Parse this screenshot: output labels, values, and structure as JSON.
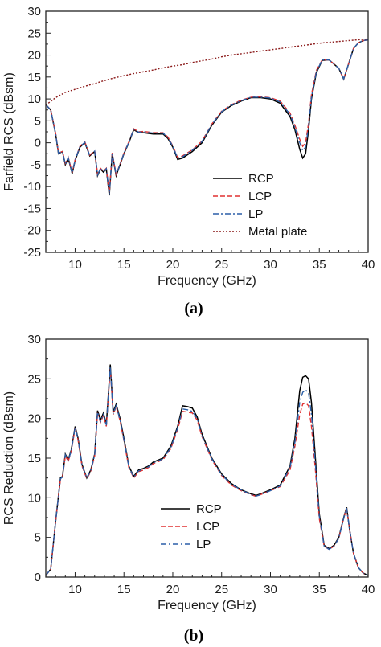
{
  "chart_data": [
    {
      "type": "line",
      "panel_label": "(a)",
      "xlabel": "Frequency (GHz)",
      "ylabel": "Farfield RCS (dBsm)",
      "xlim": [
        7,
        40
      ],
      "ylim": [
        -25,
        30
      ],
      "xticks": [
        10,
        15,
        20,
        25,
        30,
        35,
        40
      ],
      "yticks": [
        -25,
        -20,
        -15,
        -10,
        -5,
        0,
        5,
        10,
        15,
        20,
        25,
        30
      ],
      "legend_position": "lower-right",
      "grid": false,
      "series": [
        {
          "name": "RCP",
          "color": "#000000",
          "style": "solid",
          "x": [
            7,
            7.5,
            8,
            8.3,
            8.7,
            9,
            9.3,
            9.7,
            10,
            10.5,
            11,
            11.5,
            12,
            12.3,
            12.6,
            12.9,
            13.2,
            13.5,
            13.8,
            14.2,
            14.6,
            15,
            15.5,
            16,
            16.5,
            17,
            18,
            19,
            19.5,
            20,
            20.5,
            21,
            22,
            23,
            24,
            25,
            26,
            27,
            28,
            29,
            30,
            31,
            32,
            32.5,
            33,
            33.3,
            33.6,
            33.9,
            34.2,
            34.7,
            35.3,
            36,
            37,
            37.5,
            38,
            38.5,
            39,
            39.5,
            40
          ],
          "y": [
            8.7,
            7.5,
            2,
            -2.5,
            -2,
            -5,
            -3.5,
            -7,
            -4,
            -1,
            0,
            -3,
            -2,
            -7.5,
            -6,
            -6.7,
            -6,
            -12,
            -2.5,
            -7.5,
            -5,
            -2.5,
            0,
            3,
            2.3,
            2.3,
            2,
            2,
            1,
            -1,
            -3.8,
            -3.5,
            -2,
            0,
            4,
            7,
            8.5,
            9.5,
            10.3,
            10.3,
            10,
            9,
            6,
            3,
            -1.5,
            -3.5,
            -2.5,
            3,
            10,
            16,
            18.8,
            18.9,
            17,
            14.5,
            18,
            21.5,
            22.8,
            23.3,
            23.5
          ]
        },
        {
          "name": "LCP",
          "color": "#e03030",
          "style": "dashed",
          "x": [
            7,
            7.5,
            8,
            8.3,
            8.7,
            9,
            9.3,
            9.7,
            10,
            10.5,
            11,
            11.5,
            12,
            12.3,
            12.6,
            12.9,
            13.2,
            13.5,
            13.8,
            14.2,
            14.6,
            15,
            15.5,
            16,
            16.5,
            17,
            18,
            19,
            19.5,
            20,
            20.5,
            21,
            22,
            23,
            24,
            25,
            26,
            27,
            28,
            29,
            30,
            31,
            32,
            32.5,
            33,
            33.3,
            33.6,
            33.9,
            34.2,
            34.7,
            35.3,
            36,
            37,
            37.5,
            38,
            38.5,
            39,
            39.5,
            40
          ],
          "y": [
            8.7,
            7.5,
            2.2,
            -2.3,
            -2,
            -4.7,
            -3.3,
            -6.8,
            -3.8,
            -0.8,
            0.2,
            -2.8,
            -1.8,
            -7.2,
            -5.8,
            -6.5,
            -5.8,
            -11.5,
            -2.3,
            -7.2,
            -4.8,
            -2.3,
            0.2,
            3.2,
            2.5,
            2.6,
            2.3,
            2.3,
            1.3,
            -0.7,
            -3.4,
            -3,
            -1.6,
            0.4,
            4.3,
            7.2,
            8.7,
            9.7,
            10.4,
            10.5,
            10.3,
            9.5,
            6.8,
            4,
            0.8,
            -0.8,
            0,
            4.5,
            11,
            16.5,
            18.9,
            18.9,
            17,
            14.6,
            18,
            21.5,
            22.8,
            23.3,
            23.5
          ]
        },
        {
          "name": "LP",
          "color": "#2b5fa8",
          "style": "dashdot",
          "x": [
            7,
            7.5,
            8,
            8.3,
            8.7,
            9,
            9.3,
            9.7,
            10,
            10.5,
            11,
            11.5,
            12,
            12.3,
            12.6,
            12.9,
            13.2,
            13.5,
            13.8,
            14.2,
            14.6,
            15,
            15.5,
            16,
            16.5,
            17,
            18,
            19,
            19.5,
            20,
            20.5,
            21,
            22,
            23,
            24,
            25,
            26,
            27,
            28,
            29,
            30,
            31,
            32,
            32.5,
            33,
            33.3,
            33.6,
            33.9,
            34.2,
            34.7,
            35.3,
            36,
            37,
            37.5,
            38,
            38.5,
            39,
            39.5,
            40
          ],
          "y": [
            8.7,
            7.5,
            2.1,
            -2.4,
            -2,
            -4.8,
            -3.4,
            -6.9,
            -3.9,
            -0.9,
            0.1,
            -2.9,
            -1.9,
            -7.3,
            -5.9,
            -6.6,
            -5.9,
            -11.7,
            -2.4,
            -7.3,
            -4.9,
            -2.4,
            0.1,
            3.1,
            2.4,
            2.5,
            2.2,
            2.2,
            1.2,
            -0.8,
            -3.5,
            -3.2,
            -1.7,
            0.3,
            4.2,
            7.1,
            8.6,
            9.6,
            10.4,
            10.4,
            10.2,
            9.3,
            6.5,
            3.5,
            0,
            -1.8,
            -1,
            3.8,
            10.5,
            16.2,
            18.9,
            18.9,
            17,
            14.6,
            18,
            21.5,
            22.8,
            23.3,
            23.5
          ]
        },
        {
          "name": "Metal plate",
          "color": "#8b1a1a",
          "style": "dotted",
          "x": [
            7,
            8,
            9,
            10,
            11,
            12,
            13,
            14,
            15,
            16,
            17,
            18,
            19,
            20,
            21,
            22,
            23,
            24,
            25,
            26,
            27,
            28,
            29,
            30,
            31,
            32,
            33,
            34,
            35,
            36,
            37,
            38,
            39,
            40
          ],
          "y": [
            8.6,
            10.3,
            11.5,
            12.2,
            12.9,
            13.5,
            14.2,
            14.8,
            15.3,
            15.8,
            16.2,
            16.6,
            17.1,
            17.5,
            17.8,
            18.3,
            18.7,
            19.1,
            19.6,
            20,
            20.3,
            20.6,
            20.9,
            21.2,
            21.5,
            21.8,
            22.1,
            22.4,
            22.7,
            22.9,
            23.1,
            23.3,
            23.5,
            23.7
          ]
        }
      ]
    },
    {
      "type": "line",
      "panel_label": "(b)",
      "xlabel": "Frequency (GHz)",
      "ylabel": "RCS Reduction (dBsm)",
      "xlim": [
        7,
        40
      ],
      "ylim": [
        0,
        30
      ],
      "xticks": [
        10,
        15,
        20,
        25,
        30,
        35,
        40
      ],
      "yticks": [
        0,
        5,
        10,
        15,
        20,
        25,
        30
      ],
      "legend_position": "lower-center",
      "grid": false,
      "series": [
        {
          "name": "RCP",
          "color": "#000000",
          "style": "solid",
          "x": [
            7,
            7.5,
            8,
            8.5,
            8.7,
            9,
            9.3,
            9.6,
            10,
            10.3,
            10.7,
            11.2,
            11.6,
            12,
            12.3,
            12.6,
            12.9,
            13.2,
            13.4,
            13.6,
            13.9,
            14.2,
            14.6,
            15,
            15.5,
            16,
            16.5,
            17,
            17.5,
            18,
            19,
            19.8,
            20.5,
            21,
            21.5,
            22,
            22.5,
            23,
            24,
            25,
            26,
            27,
            28,
            28.5,
            29,
            30,
            31,
            32,
            32.5,
            33,
            33.3,
            33.6,
            33.9,
            34.2,
            34.6,
            35,
            35.5,
            36,
            36.5,
            37,
            37.5,
            37.8,
            38.1,
            38.5,
            39,
            39.5,
            40
          ],
          "y": [
            0.2,
            1,
            7,
            12.5,
            12.7,
            15.5,
            14.8,
            16,
            19,
            17.5,
            14.2,
            12.5,
            13.5,
            15.5,
            21,
            19.8,
            20.7,
            19.3,
            23,
            26.8,
            20.8,
            21.8,
            20,
            17.5,
            14,
            12.7,
            13.5,
            13.7,
            14,
            14.5,
            15,
            16.5,
            19,
            21.6,
            21.5,
            21.3,
            20.2,
            18,
            15,
            13,
            11.8,
            11,
            10.5,
            10.3,
            10.5,
            11,
            11.6,
            14,
            17.5,
            23.5,
            25.2,
            25.4,
            25,
            22,
            15,
            8,
            4,
            3.6,
            4,
            5,
            7.5,
            8.8,
            6,
            3,
            1.2,
            0.5,
            0.2
          ]
        },
        {
          "name": "LCP",
          "color": "#e03030",
          "style": "dashed",
          "x": [
            7,
            7.5,
            8,
            8.5,
            8.7,
            9,
            9.3,
            9.6,
            10,
            10.3,
            10.7,
            11.2,
            11.6,
            12,
            12.3,
            12.6,
            12.9,
            13.2,
            13.4,
            13.6,
            13.9,
            14.2,
            14.6,
            15,
            15.5,
            16,
            16.5,
            17,
            17.5,
            18,
            19,
            19.8,
            20.5,
            21,
            21.5,
            22,
            22.5,
            23,
            24,
            25,
            26,
            27,
            28,
            28.5,
            29,
            30,
            31,
            32,
            32.5,
            33,
            33.3,
            33.6,
            33.9,
            34.2,
            34.6,
            35,
            35.5,
            36,
            36.5,
            37,
            37.5,
            37.8,
            38.1,
            38.5,
            39,
            39.5,
            40
          ],
          "y": [
            0.2,
            1,
            7,
            12.3,
            12.5,
            15.3,
            14.6,
            15.8,
            18.8,
            17.3,
            14,
            12.4,
            13.3,
            15.3,
            20.7,
            19.5,
            20.4,
            19,
            22.7,
            26.3,
            20.5,
            21.5,
            19.7,
            17.2,
            13.8,
            12.5,
            13.3,
            13.5,
            13.8,
            14.3,
            14.8,
            16.2,
            18.6,
            20.9,
            20.8,
            20.7,
            19.8,
            17.7,
            14.8,
            12.8,
            11.6,
            10.9,
            10.4,
            10.2,
            10.4,
            10.9,
            11.4,
            13.5,
            16.5,
            20.5,
            21.8,
            22,
            21.6,
            19,
            13.5,
            7.4,
            3.9,
            3.5,
            3.9,
            4.9,
            7.4,
            8.7,
            6,
            3,
            1.2,
            0.5,
            0.2
          ]
        },
        {
          "name": "LP",
          "color": "#2b5fa8",
          "style": "dashdot",
          "x": [
            7,
            7.5,
            8,
            8.5,
            8.7,
            9,
            9.3,
            9.6,
            10,
            10.3,
            10.7,
            11.2,
            11.6,
            12,
            12.3,
            12.6,
            12.9,
            13.2,
            13.4,
            13.6,
            13.9,
            14.2,
            14.6,
            15,
            15.5,
            16,
            16.5,
            17,
            17.5,
            18,
            19,
            19.8,
            20.5,
            21,
            21.5,
            22,
            22.5,
            23,
            24,
            25,
            26,
            27,
            28,
            28.5,
            29,
            30,
            31,
            32,
            32.5,
            33,
            33.3,
            33.6,
            33.9,
            34.2,
            34.6,
            35,
            35.5,
            36,
            36.5,
            37,
            37.5,
            37.8,
            38.1,
            38.5,
            39,
            39.5,
            40
          ],
          "y": [
            0.2,
            1,
            7,
            12.4,
            12.6,
            15.4,
            14.7,
            15.9,
            18.9,
            17.4,
            14.1,
            12.5,
            13.4,
            15.4,
            20.8,
            19.6,
            20.5,
            19.1,
            22.8,
            26.5,
            20.6,
            21.6,
            19.8,
            17.3,
            13.9,
            12.6,
            13.4,
            13.6,
            13.9,
            14.4,
            14.9,
            16.3,
            18.8,
            21.2,
            21.1,
            20.9,
            20,
            17.8,
            14.9,
            12.9,
            11.7,
            11,
            10.4,
            10.2,
            10.4,
            10.9,
            11.5,
            13.8,
            17,
            22,
            23.3,
            23.6,
            23.2,
            20.5,
            14.2,
            7.7,
            3.9,
            3.5,
            3.9,
            4.9,
            7.4,
            8.7,
            6,
            3,
            1.2,
            0.5,
            0.2
          ]
        }
      ]
    }
  ]
}
